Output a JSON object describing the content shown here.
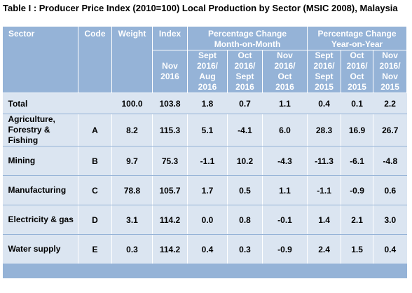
{
  "title": "Table I : Producer Price  Index (2010=100)  Local Production by Sector (MSIC 2008), Malaysia",
  "headers": {
    "sector": "Sector",
    "code": "Code",
    "weight": "Weight",
    "index": "Index",
    "mom_line1": "Percentage Change",
    "mom_line2": "Month-on-Month",
    "yoy_line1": "Percentage Change",
    "yoy_line2": "Year-on-Year"
  },
  "subheaders": {
    "index": [
      "Nov",
      "2016"
    ],
    "mom": [
      [
        "Sept",
        "2016/",
        "Aug",
        "2016"
      ],
      [
        "Oct",
        "2016/",
        "Sept",
        "2016"
      ],
      [
        "Nov",
        "2016/",
        "Oct",
        "2016"
      ]
    ],
    "yoy": [
      [
        "Sept",
        "2016/",
        "Sept",
        "2015"
      ],
      [
        "Oct",
        "2016/",
        "Oct",
        "2015"
      ],
      [
        "Nov",
        "2016/",
        "Nov",
        "2015"
      ]
    ]
  },
  "total": {
    "label": "Total",
    "weight": "100.0",
    "index": "103.8",
    "mom": [
      "1.8",
      "0.7",
      "1.1"
    ],
    "yoy": [
      "0.4",
      "0.1",
      "2.2"
    ]
  },
  "rows": [
    {
      "sector": [
        "Agriculture,",
        "Forestry &",
        "Fishing"
      ],
      "code": "A",
      "weight": "8.2",
      "index": "115.3",
      "mom": [
        "5.1",
        "-4.1",
        "6.0"
      ],
      "yoy": [
        "28.3",
        "16.9",
        "26.7"
      ]
    },
    {
      "sector": [
        "Mining"
      ],
      "code": "B",
      "weight": "9.7",
      "index": "75.3",
      "mom": [
        "-1.1",
        "10.2",
        "-4.3"
      ],
      "yoy": [
        "-11.3",
        "-6.1",
        "-4.8"
      ]
    },
    {
      "sector": [
        "Manufacturing"
      ],
      "code": "C",
      "weight": "78.8",
      "index": "105.7",
      "mom": [
        "1.7",
        "0.5",
        "1.1"
      ],
      "yoy": [
        "-1.1",
        "-0.9",
        "0.6"
      ]
    },
    {
      "sector": [
        "Electricity & gas"
      ],
      "code": "D",
      "weight": "3.1",
      "index": "114.2",
      "mom": [
        "0.0",
        "0.8",
        "-0.1"
      ],
      "yoy": [
        "1.4",
        "2.1",
        "3.0"
      ]
    },
    {
      "sector": [
        "Water supply"
      ],
      "code": "E",
      "weight": "0.3",
      "index": "114.2",
      "mom": [
        "0.4",
        "0.3",
        "-0.9"
      ],
      "yoy": [
        "2.4",
        "1.5",
        "0.4"
      ]
    }
  ]
}
